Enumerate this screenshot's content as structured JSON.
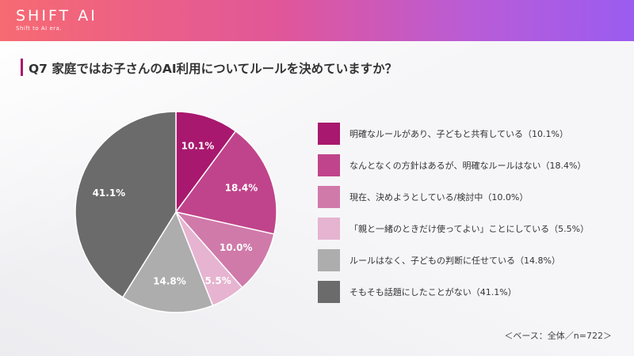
{
  "header": {
    "logo_text": "SHIFT AI",
    "logo_tagline": "Shift to AI era."
  },
  "question": {
    "title": "Q7  家庭ではお子さんのAI利用についてルールを決めていますか？"
  },
  "base_note": "＜ベース：全体／n=722＞",
  "chart_data": {
    "type": "pie",
    "title": "",
    "start_angle_deg": 0,
    "direction": "clockwise",
    "slices": [
      {
        "label": "明確なルールがあり、子どもと共有している（10.1%）",
        "value": 10.1,
        "value_label": "10.1%",
        "color": "#a8186e"
      },
      {
        "label": "なんとなくの方針はあるが、明確なルールはない（18.4%）",
        "value": 18.4,
        "value_label": "18.4%",
        "color": "#c0448b"
      },
      {
        "label": "現在、決めようとしている/検討中（10.0%）",
        "value": 10.0,
        "value_label": "10.0%",
        "color": "#d07aaa"
      },
      {
        "label": "「親と一緒のときだけ使ってよい」ことにしている（5.5%）",
        "value": 5.5,
        "value_label": "5.5%",
        "color": "#e6b4d0"
      },
      {
        "label": "ルールはなく、子どもの判断に任せている（14.8%）",
        "value": 14.8,
        "value_label": "14.8%",
        "color": "#adadad"
      },
      {
        "label": "そもそも話題にしたことがない（41.1%）",
        "value": 41.1,
        "value_label": "41.1%",
        "color": "#6b6b6b"
      }
    ]
  }
}
